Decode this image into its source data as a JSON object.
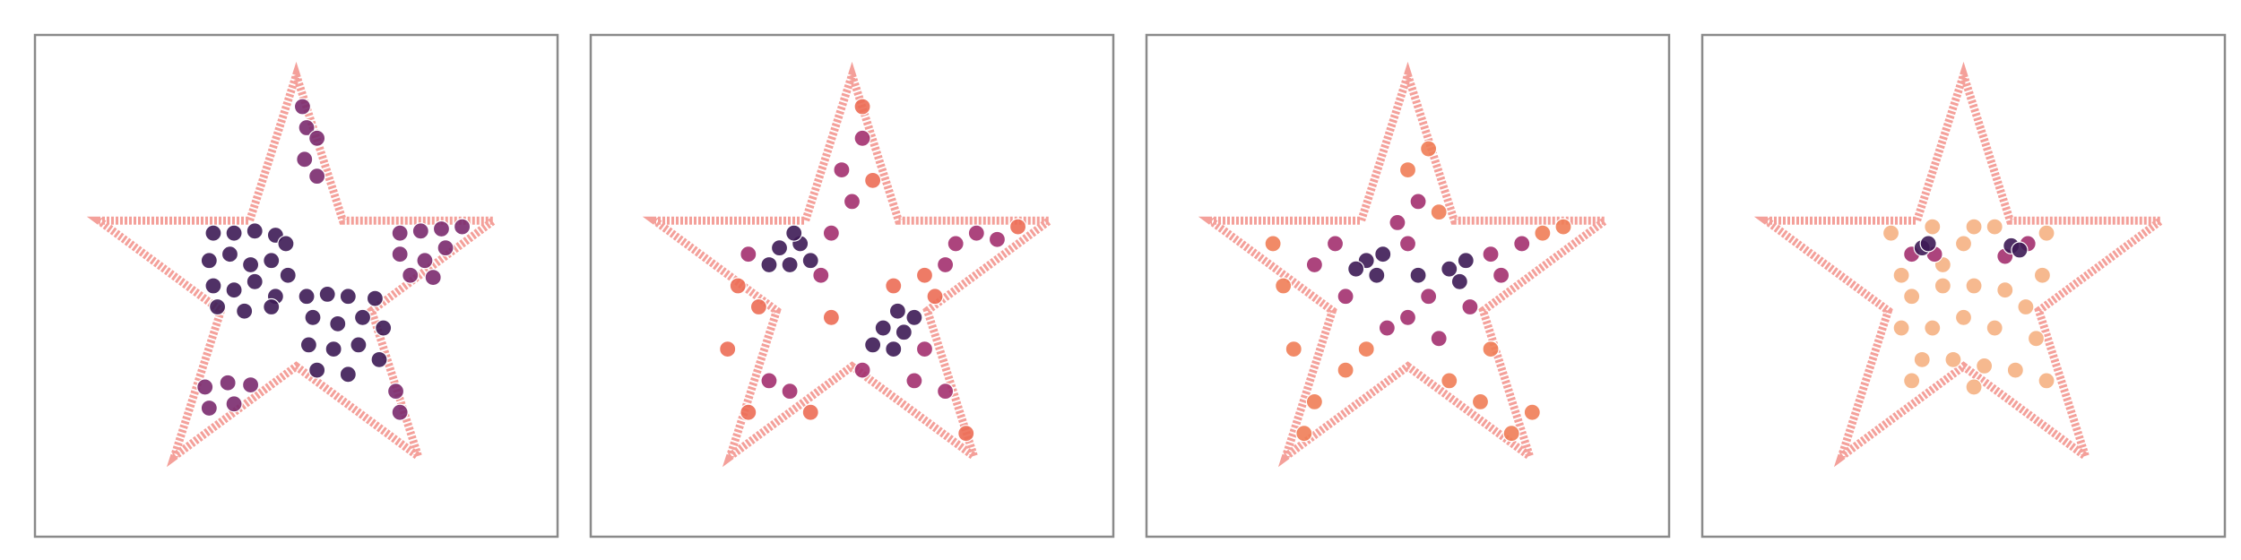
{
  "chart_data": [
    {
      "type": "scatter",
      "xlim": [
        -1.26,
        1.26
      ],
      "ylim": [
        -1.19,
        1.19
      ],
      "outline": {
        "color": "#f4a09a",
        "x": [
          0,
          0.2245,
          0.951,
          0.3633,
          0.588,
          0,
          -0.588,
          -0.3633,
          -0.951,
          -0.2245
        ],
        "y": [
          1,
          0.309,
          0.309,
          -0.118,
          -0.809,
          -0.382,
          -0.809,
          -0.118,
          0.309,
          0.309
        ]
      },
      "series": [
        {
          "color": "#3d1b55",
          "x": [
            -0.4,
            -0.3,
            -0.2,
            -0.1,
            -0.05,
            -0.42,
            -0.32,
            -0.22,
            -0.12,
            -0.04,
            -0.4,
            -0.3,
            -0.2,
            -0.1,
            -0.38,
            -0.25,
            -0.12,
            0.05,
            0.15,
            0.25,
            0.38,
            0.08,
            0.2,
            0.32,
            0.42,
            0.06,
            0.18,
            0.3,
            0.4,
            0.1,
            0.25
          ],
          "y": [
            0.25,
            0.25,
            0.26,
            0.24,
            0.2,
            0.12,
            0.15,
            0.1,
            0.12,
            0.05,
            0.0,
            -0.02,
            0.02,
            -0.05,
            -0.1,
            -0.12,
            -0.1,
            -0.05,
            -0.04,
            -0.05,
            -0.06,
            -0.15,
            -0.18,
            -0.15,
            -0.2,
            -0.28,
            -0.3,
            -0.28,
            -0.35,
            -0.4,
            -0.42
          ]
        },
        {
          "color": "#7a2a6e",
          "x": [
            0.5,
            0.6,
            0.7,
            0.8,
            0.5,
            0.62,
            0.72,
            0.55,
            0.66,
            -0.44,
            -0.33,
            -0.22,
            -0.42,
            -0.3,
            0.03,
            0.05,
            0.1,
            0.04,
            0.1,
            0.48,
            0.5
          ],
          "y": [
            0.25,
            0.26,
            0.27,
            0.28,
            0.15,
            0.12,
            0.18,
            0.05,
            0.04,
            -0.48,
            -0.46,
            -0.47,
            -0.58,
            -0.56,
            0.85,
            0.75,
            0.7,
            0.6,
            0.52,
            -0.5,
            -0.6
          ]
        }
      ]
    },
    {
      "type": "scatter",
      "xlim": [
        -1.26,
        1.26
      ],
      "ylim": [
        -1.19,
        1.19
      ],
      "outline": {
        "color": "#f4a09a",
        "x": [
          0,
          0.2245,
          0.951,
          0.3633,
          0.588,
          0,
          -0.588,
          -0.3633,
          -0.951,
          -0.2245
        ],
        "y": [
          1,
          0.309,
          0.309,
          -0.118,
          -0.809,
          -0.382,
          -0.809,
          -0.118,
          0.309,
          0.309
        ]
      },
      "series": [
        {
          "color": "#3d1b55",
          "x": [
            -0.35,
            -0.25,
            -0.3,
            -0.2,
            -0.4,
            -0.28,
            0.15,
            0.25,
            0.2,
            0.3,
            0.1,
            0.22
          ],
          "y": [
            0.18,
            0.2,
            0.1,
            0.12,
            0.1,
            0.25,
            -0.2,
            -0.22,
            -0.3,
            -0.15,
            -0.28,
            -0.12
          ]
        },
        {
          "color": "#a3306f",
          "x": [
            -0.5,
            -0.15,
            -0.1,
            0.0,
            -0.05,
            0.05,
            0.5,
            0.6,
            0.7,
            0.45,
            0.35,
            0.05,
            -0.4,
            -0.3,
            0.45,
            0.3
          ],
          "y": [
            0.15,
            0.05,
            0.25,
            0.4,
            0.55,
            0.7,
            0.2,
            0.25,
            0.22,
            0.1,
            -0.3,
            -0.4,
            -0.45,
            -0.5,
            -0.5,
            -0.45
          ]
        },
        {
          "color": "#ec6d55",
          "x": [
            -0.55,
            -0.45,
            -0.6,
            -0.5,
            0.05,
            0.1,
            0.2,
            0.35,
            0.55,
            -0.1,
            0.8,
            -0.2,
            0.4
          ],
          "y": [
            0.0,
            -0.1,
            -0.3,
            -0.6,
            0.85,
            0.5,
            0.0,
            0.05,
            -0.7,
            -0.15,
            0.28,
            -0.6,
            -0.05
          ]
        }
      ]
    },
    {
      "type": "scatter",
      "xlim": [
        -1.26,
        1.26
      ],
      "ylim": [
        -1.19,
        1.19
      ],
      "outline": {
        "color": "#f4a09a",
        "x": [
          0,
          0.2245,
          0.951,
          0.3633,
          0.588,
          0,
          -0.588,
          -0.3633,
          -0.951,
          -0.2245
        ],
        "y": [
          1,
          0.309,
          0.309,
          -0.118,
          -0.809,
          -0.382,
          -0.809,
          -0.118,
          0.309,
          0.309
        ]
      },
      "series": [
        {
          "color": "#3d1b55",
          "x": [
            -0.2,
            -0.12,
            -0.15,
            -0.25,
            0.2,
            0.28,
            0.25,
            0.05
          ],
          "y": [
            0.12,
            0.15,
            0.05,
            0.08,
            0.08,
            0.12,
            0.02,
            0.05
          ]
        },
        {
          "color": "#a3306f",
          "x": [
            -0.35,
            -0.3,
            0.0,
            0.1,
            0.4,
            0.45,
            0.0,
            -0.1,
            0.15,
            0.05,
            -0.05,
            0.3,
            0.55,
            -0.45
          ],
          "y": [
            0.2,
            -0.05,
            0.2,
            -0.05,
            0.15,
            0.05,
            -0.15,
            -0.2,
            -0.25,
            0.4,
            0.3,
            -0.1,
            0.2,
            0.1
          ]
        },
        {
          "color": "#ef7d57",
          "x": [
            -0.6,
            -0.55,
            -0.45,
            -0.3,
            0.1,
            0.0,
            0.2,
            0.35,
            0.5,
            0.65,
            -0.2,
            0.4,
            0.75,
            -0.65,
            -0.5,
            0.6,
            0.15
          ],
          "y": [
            0.0,
            -0.3,
            -0.55,
            -0.4,
            0.65,
            0.55,
            -0.45,
            -0.55,
            -0.7,
            0.25,
            -0.3,
            -0.3,
            0.28,
            0.2,
            -0.7,
            -0.6,
            0.35
          ]
        }
      ]
    },
    {
      "type": "scatter",
      "xlim": [
        -1.26,
        1.26
      ],
      "ylim": [
        -1.19,
        1.19
      ],
      "outline": {
        "color": "#f4a09a",
        "x": [
          0,
          0.2245,
          0.951,
          0.3633,
          0.588,
          0,
          -0.588,
          -0.3633,
          -0.951,
          -0.2245
        ],
        "y": [
          1,
          0.309,
          0.309,
          -0.118,
          -0.809,
          -0.382,
          -0.809,
          -0.118,
          0.309,
          0.309
        ]
      },
      "series": [
        {
          "color": "#f5b183",
          "x": [
            -0.35,
            -0.3,
            -0.15,
            0.0,
            0.05,
            0.15,
            0.4,
            0.38,
            -0.25,
            -0.1,
            0.05,
            0.2,
            0.3,
            -0.3,
            -0.15,
            0.0,
            0.15,
            0.35,
            -0.2,
            -0.05,
            0.1,
            0.25,
            -0.25,
            0.05,
            0.4,
            -0.1
          ],
          "y": [
            0.25,
            0.05,
            0.28,
            0.2,
            0.28,
            0.28,
            0.25,
            0.05,
            -0.05,
            0.0,
            0.0,
            -0.02,
            -0.1,
            -0.2,
            -0.2,
            -0.15,
            -0.2,
            -0.25,
            -0.35,
            -0.35,
            -0.38,
            -0.4,
            -0.45,
            -0.48,
            -0.45,
            0.1
          ]
        },
        {
          "color": "#a3306f",
          "x": [
            -0.25,
            -0.14,
            0.2,
            0.31
          ],
          "y": [
            0.15,
            0.15,
            0.14,
            0.2
          ]
        },
        {
          "color": "#3d1b55",
          "x": [
            -0.2,
            -0.17,
            0.23,
            0.27
          ],
          "y": [
            0.18,
            0.2,
            0.19,
            0.17
          ]
        }
      ]
    }
  ]
}
